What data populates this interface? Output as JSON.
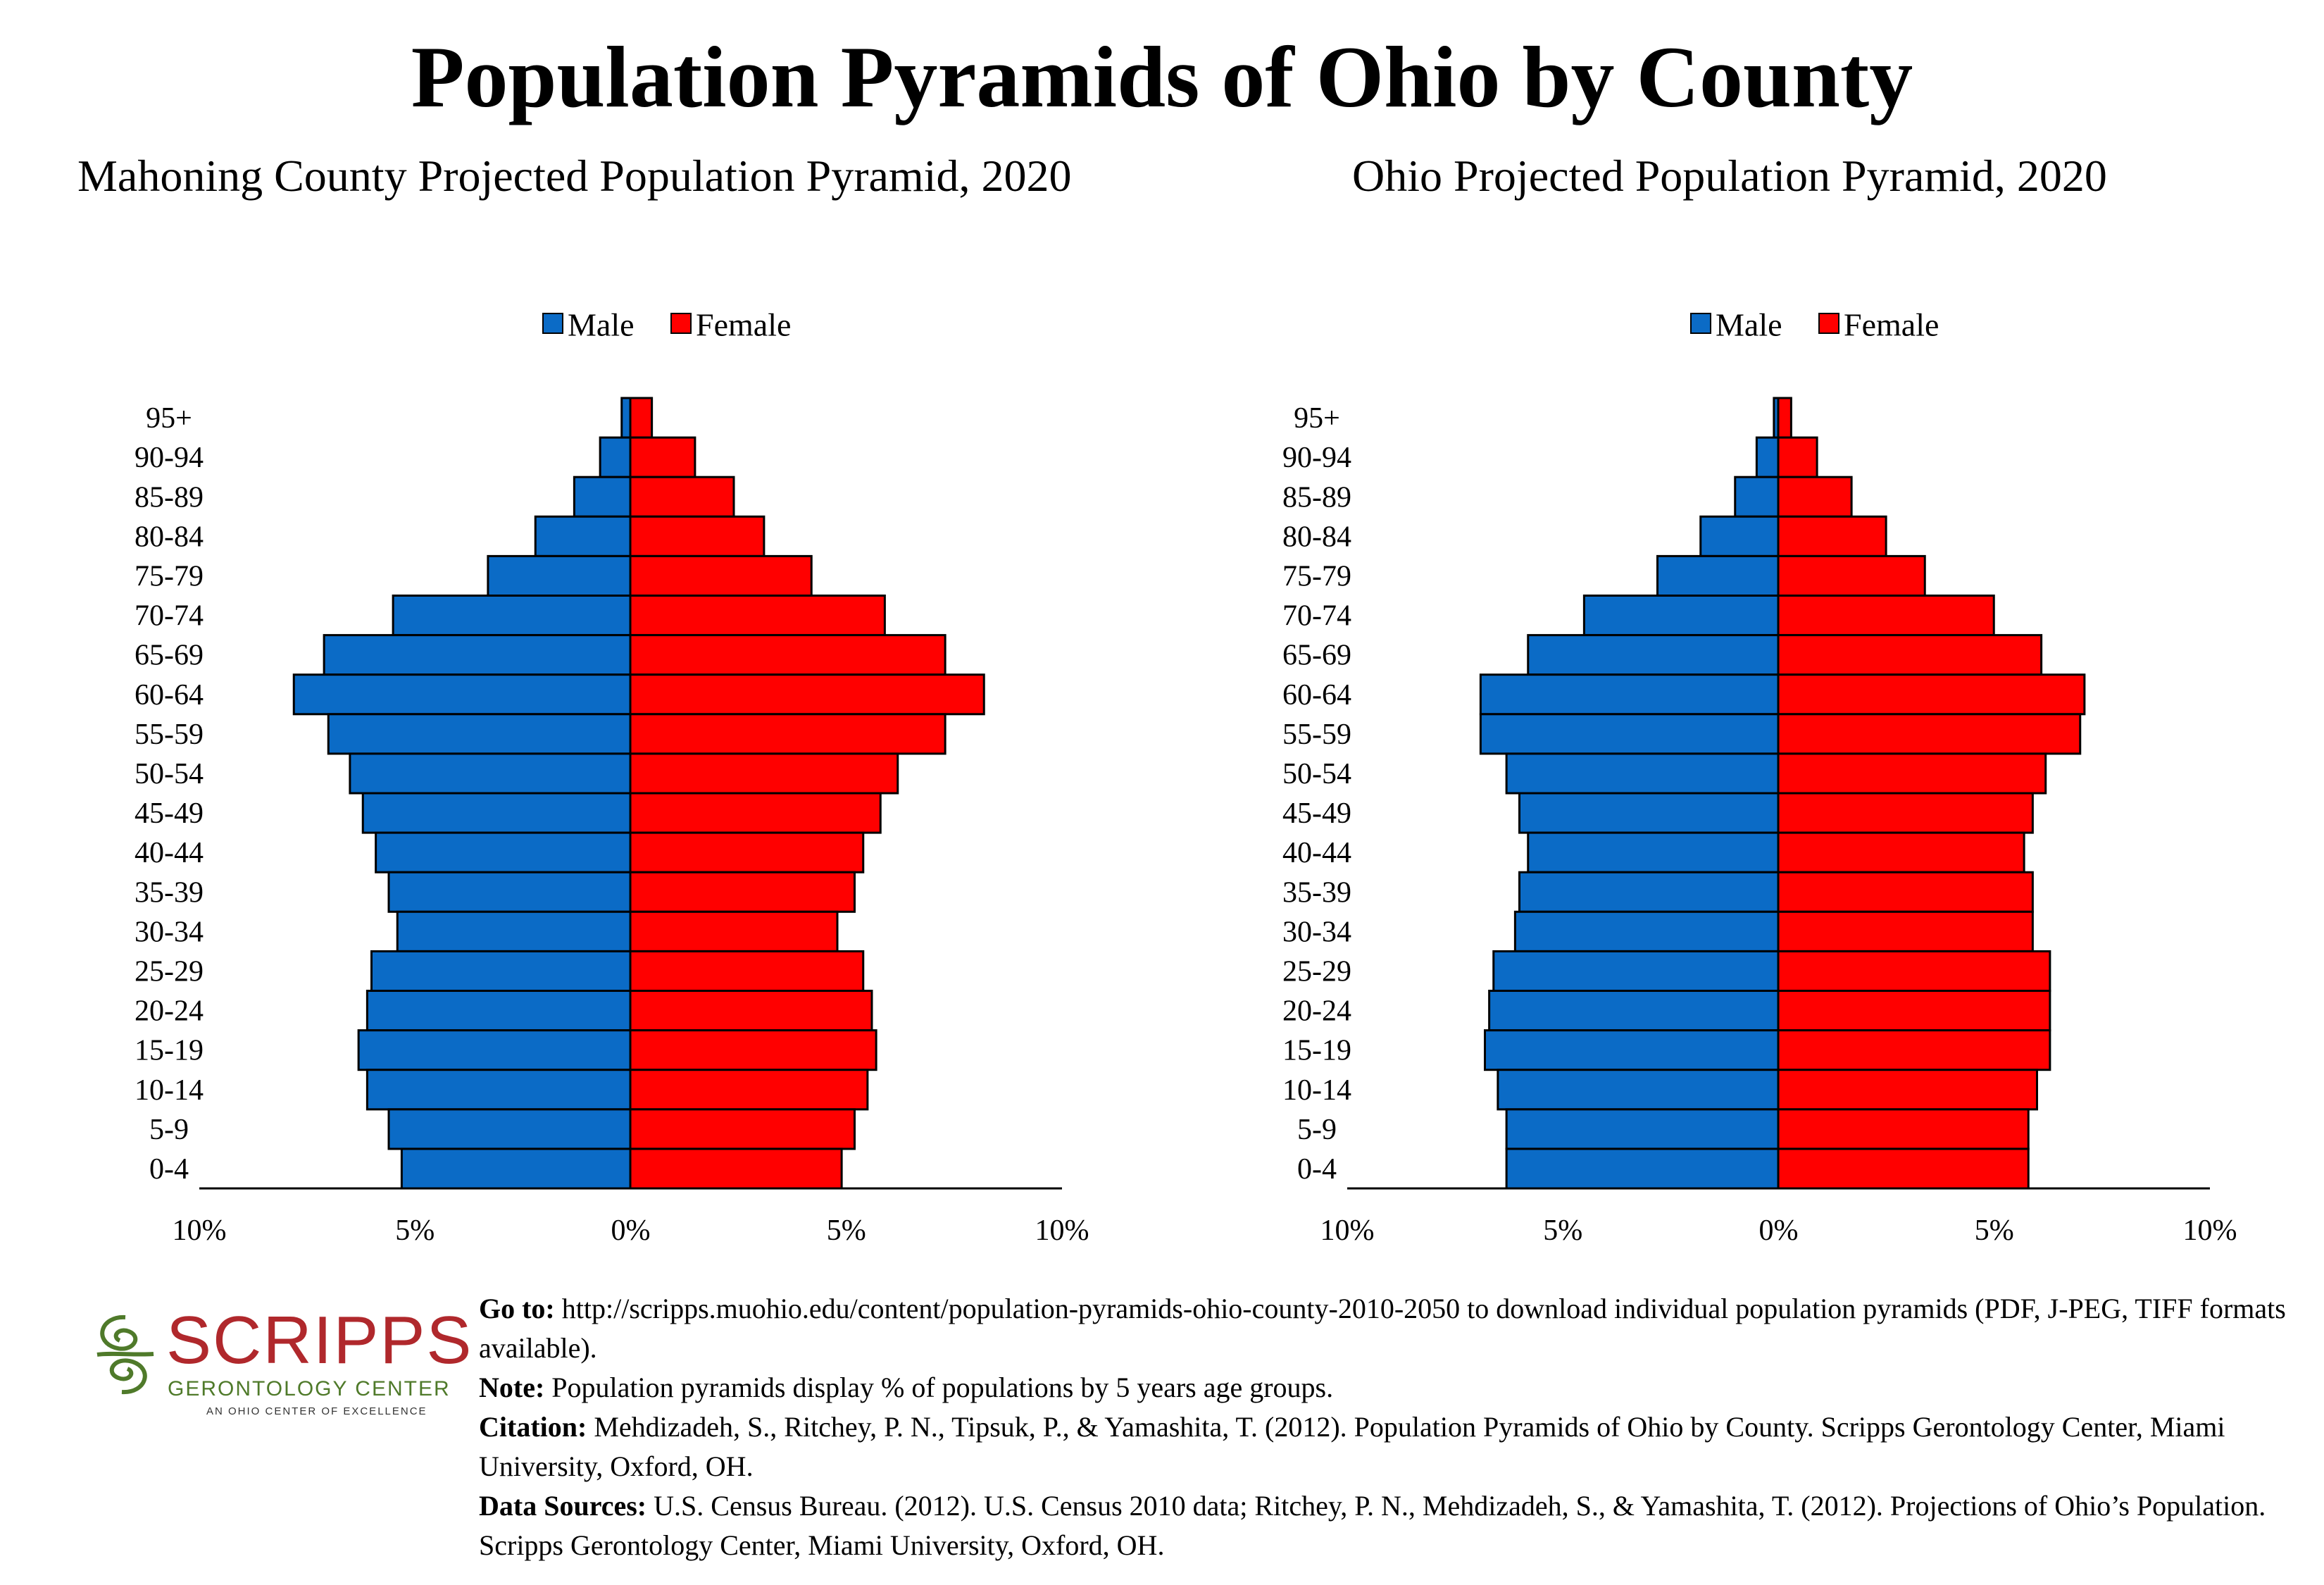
{
  "title": "Population Pyramids of Ohio by County",
  "legend": {
    "male": "Male",
    "female": "Female"
  },
  "colors": {
    "male": "#0b6bc6",
    "female": "#ff0000",
    "logo_red": "#b0282c",
    "logo_green": "#4f7a2a"
  },
  "chart_data": [
    {
      "type": "bar",
      "orientation": "horizontal-pyramid",
      "title": "Mahoning County Projected Population Pyramid, 2020",
      "categories": [
        "95+",
        "90-94",
        "85-89",
        "80-84",
        "75-79",
        "70-74",
        "65-69",
        "60-64",
        "55-59",
        "50-54",
        "45-49",
        "40-44",
        "35-39",
        "30-34",
        "25-29",
        "20-24",
        "15-19",
        "10-14",
        "5-9",
        "0-4"
      ],
      "series": [
        {
          "name": "Male",
          "values": [
            0.2,
            0.7,
            1.3,
            2.2,
            3.3,
            5.5,
            7.1,
            7.8,
            7.0,
            6.5,
            6.2,
            5.9,
            5.6,
            5.4,
            6.0,
            6.1,
            6.3,
            6.1,
            5.6,
            5.3
          ]
        },
        {
          "name": "Female",
          "values": [
            0.5,
            1.5,
            2.4,
            3.1,
            4.2,
            5.9,
            7.3,
            8.2,
            7.3,
            6.2,
            5.8,
            5.4,
            5.2,
            4.8,
            5.4,
            5.6,
            5.7,
            5.5,
            5.2,
            4.9
          ]
        }
      ],
      "xticks": [
        "10%",
        "5%",
        "0%",
        "5%",
        "10%"
      ],
      "xlim": [
        -10,
        10
      ],
      "legend_position": "top-center"
    },
    {
      "type": "bar",
      "orientation": "horizontal-pyramid",
      "title": "Ohio Projected Population Pyramid, 2020",
      "categories": [
        "95+",
        "90-94",
        "85-89",
        "80-84",
        "75-79",
        "70-74",
        "65-69",
        "60-64",
        "55-59",
        "50-54",
        "45-49",
        "40-44",
        "35-39",
        "30-34",
        "25-29",
        "20-24",
        "15-19",
        "10-14",
        "5-9",
        "0-4"
      ],
      "series": [
        {
          "name": "Male",
          "values": [
            0.1,
            0.5,
            1.0,
            1.8,
            2.8,
            4.5,
            5.8,
            6.9,
            6.9,
            6.3,
            6.0,
            5.8,
            6.0,
            6.1,
            6.6,
            6.7,
            6.8,
            6.5,
            6.3,
            6.3
          ]
        },
        {
          "name": "Female",
          "values": [
            0.3,
            0.9,
            1.7,
            2.5,
            3.4,
            5.0,
            6.1,
            7.1,
            7.0,
            6.2,
            5.9,
            5.7,
            5.9,
            5.9,
            6.3,
            6.3,
            6.3,
            6.0,
            5.8,
            5.8
          ]
        }
      ],
      "xticks": [
        "10%",
        "5%",
        "0%",
        "5%",
        "10%"
      ],
      "xlim": [
        -10,
        10
      ],
      "legend_position": "top-center"
    }
  ],
  "footer": {
    "logo": {
      "word": "SCRIPPS",
      "sub": "GERONTOLOGY CENTER",
      "tagline": "AN OHIO CENTER OF EXCELLENCE"
    },
    "goto": {
      "label": "Go to:",
      "text": "http://scripps.muohio.edu/content/population-pyramids-ohio-county-2010-2050 to download individual population pyramids (PDF, J-PEG, TIFF formats available)."
    },
    "note": {
      "label": "Note:",
      "text": "Population pyramids display % of populations by 5 years age groups."
    },
    "citation": {
      "label": "Citation:",
      "text": "Mehdizadeh, S., Ritchey, P. N., Tipsuk, P., & Yamashita, T. (2012). Population Pyramids of Ohio by County. Scripps Gerontology Center, Miami University, Oxford, OH."
    },
    "sources": {
      "label": "Data Sources:",
      "text": "U.S. Census Bureau. (2012). U.S. Census 2010 data; Ritchey, P. N., Mehdizadeh, S., & Yamashita, T. (2012). Projections of Ohio’s Population. Scripps Gerontology Center, Miami University, Oxford, OH."
    }
  }
}
